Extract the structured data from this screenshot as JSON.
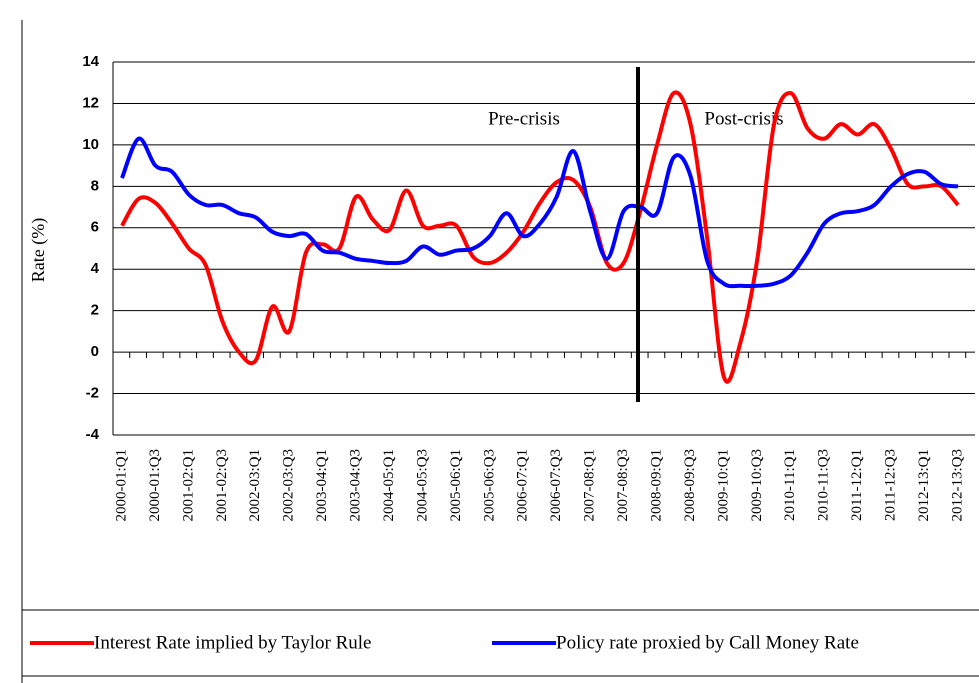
{
  "chart_data": {
    "type": "line",
    "y_label": "Rate (%)",
    "annotations": [
      "Pre-crisis",
      "Post-crisis"
    ],
    "categories": [
      "2000-01:Q1",
      null,
      "2000-01:Q3",
      null,
      "2001-02:Q1",
      null,
      "2001-02:Q3",
      null,
      "2002-03:Q1",
      null,
      "2002-03:Q3",
      null,
      "2003-04:Q1",
      null,
      "2003-04:Q3",
      null,
      "2004-05:Q1",
      null,
      "2004-05:Q3",
      null,
      "2005-06:Q1",
      null,
      "2005-06:Q3",
      null,
      "2006-07:Q1",
      null,
      "2006-07:Q3",
      null,
      "2007-08:Q1",
      null,
      "2007-08:Q3",
      null,
      "2008-09:Q1",
      null,
      "2008-09:Q3",
      null,
      "2009-10:Q1",
      null,
      "2009-10:Q3",
      null,
      "2010-11:Q1",
      null,
      "2010-11:Q3",
      null,
      "2011-12:Q1",
      null,
      "2011-12:Q3",
      null,
      "2012-13:Q1",
      null,
      "2012-13:Q3"
    ],
    "series": [
      {
        "name": "Interest Rate implied by Taylor Rule",
        "color": "#ff0000",
        "values": [
          6.1,
          7.4,
          7.2,
          6.2,
          5.0,
          4.2,
          1.5,
          0.0,
          -0.4,
          2.2,
          1.0,
          4.8,
          5.2,
          5.0,
          7.5,
          6.4,
          5.9,
          7.8,
          6.1,
          6.1,
          6.1,
          4.6,
          4.3,
          4.8,
          5.8,
          7.2,
          8.2,
          8.3,
          7.0,
          4.3,
          4.3,
          6.8,
          10.0,
          12.5,
          11.0,
          5.5,
          -1.2,
          0.5,
          4.5,
          11.0,
          12.5,
          10.8,
          10.3,
          11.0,
          10.5,
          11.0,
          9.8,
          8.1,
          8.0,
          8.0,
          7.1
        ]
      },
      {
        "name": "Policy rate proxied by Call Money Rate",
        "color": "#0000ff",
        "values": [
          8.4,
          10.3,
          9.0,
          8.7,
          7.6,
          7.1,
          7.1,
          6.7,
          6.5,
          5.8,
          5.6,
          5.7,
          4.9,
          4.8,
          4.5,
          4.4,
          4.3,
          4.4,
          5.1,
          4.7,
          4.9,
          5.0,
          5.6,
          6.7,
          5.6,
          6.2,
          7.5,
          9.7,
          6.8,
          4.5,
          6.8,
          7.0,
          6.7,
          9.4,
          8.5,
          4.4,
          3.3,
          3.2,
          3.2,
          3.3,
          3.7,
          4.8,
          6.2,
          6.7,
          6.8,
          7.1,
          8.0,
          8.6,
          8.7,
          8.1,
          8.0
        ]
      }
    ],
    "ylim": [
      -4,
      14
    ],
    "yticks": [
      -4,
      -2,
      0,
      2,
      4,
      6,
      8,
      10,
      12,
      14
    ],
    "grid": true
  }
}
